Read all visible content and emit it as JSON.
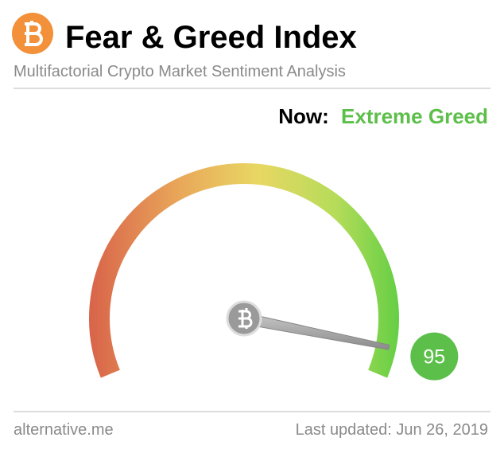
{
  "chart_data": {
    "type": "gauge",
    "title": "Fear & Greed Index",
    "subtitle": "Multifactorial Crypto Market Sentiment Analysis",
    "status_prefix": "Now:",
    "status": "Extreme Greed",
    "status_color": "#5cbf4a",
    "value": 95,
    "value_color": "#5cbf4a",
    "ylim": [
      0,
      100
    ],
    "source": "alternative.me",
    "updated": "Last updated: Jun 26, 2019"
  }
}
